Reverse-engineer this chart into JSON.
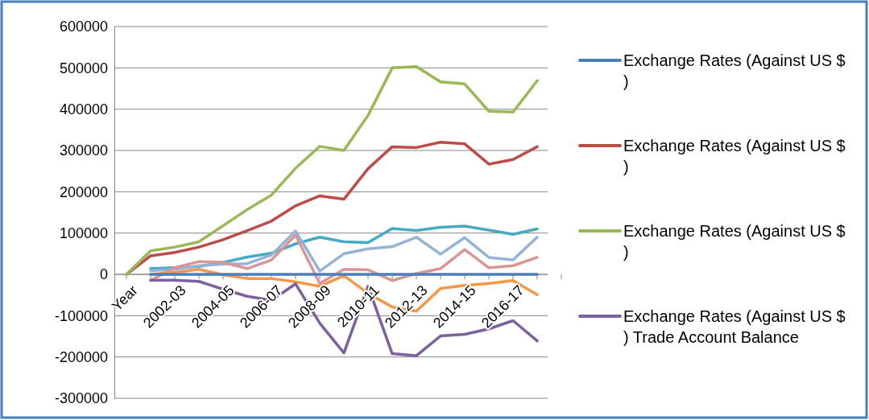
{
  "chart_data": {
    "type": "line",
    "categories": [
      "Year",
      null,
      "2002-03",
      null,
      "2004-05",
      null,
      "2006-07",
      null,
      "2008-09",
      null,
      "2010-11",
      null,
      "2012-13",
      null,
      "2014-15",
      null,
      "2016-17",
      null
    ],
    "ylim": [
      -300000,
      600000
    ],
    "yticks": [
      -300000,
      -200000,
      -100000,
      0,
      100000,
      200000,
      300000,
      400000,
      500000,
      600000
    ],
    "grid": "y",
    "legend": "right",
    "line_style": "solid",
    "marker": "none",
    "series": [
      {
        "color": "#46aac5",
        "values": [
          null,
          14000,
          16000,
          19000,
          29000,
          42000,
          51000,
          74000,
          90000,
          79000,
          77000,
          111000,
          106000,
          114000,
          117000,
          107000,
          97000,
          110000
        ]
      },
      {
        "color": "#95b3d7",
        "values": [
          null,
          9000,
          12000,
          21000,
          25000,
          26000,
          47000,
          105000,
          8000,
          50000,
          62000,
          67000,
          90000,
          49000,
          89000,
          41000,
          35000,
          90000
        ]
      },
      {
        "color": "#d99694",
        "values": [
          null,
          -15000,
          16000,
          31000,
          29000,
          14000,
          35000,
          95000,
          -22000,
          12000,
          11000,
          -15000,
          2000,
          14000,
          60000,
          16000,
          21000,
          41000
        ]
      },
      {
        "color": "#f79646",
        "values": [
          null,
          0,
          5000,
          12000,
          -1000,
          -10000,
          -10000,
          -18000,
          -29000,
          -3000,
          -46000,
          -79000,
          -89000,
          -34000,
          -27000,
          -22000,
          -15000,
          -49000
        ]
      },
      {
        "name": "Exchange Rates (Against US $ )",
        "color": "#4a7ebb",
        "values": [
          null,
          0,
          0,
          0,
          0,
          0,
          0,
          0,
          0,
          0,
          0,
          0,
          0,
          0,
          0,
          0,
          0,
          0
        ]
      },
      {
        "name": "Exchange Rates (Against US $ )",
        "color": "#be4b48",
        "values": [
          0,
          45000,
          53000,
          66000,
          84000,
          106000,
          129000,
          166000,
          190000,
          182000,
          256000,
          309000,
          307000,
          320000,
          316000,
          267000,
          278000,
          309000
        ]
      },
      {
        "name": "Exchange Rates (Against US $ )",
        "color": "#98b954",
        "values": [
          0,
          57000,
          66000,
          79000,
          118000,
          157000,
          192000,
          257000,
          310000,
          300000,
          385000,
          500000,
          503000,
          466000,
          461000,
          395000,
          393000,
          469000
        ]
      },
      {
        "name": "Exchange Rates (Against US $ ) Trade Account Balance",
        "color": "#7d60a0",
        "values": [
          null,
          -14000,
          -14000,
          -17000,
          -36000,
          -53000,
          -63000,
          -23000,
          -118000,
          -190000,
          -29000,
          -192000,
          -197000,
          -149000,
          -145000,
          -132000,
          -112000,
          -161000
        ]
      }
    ]
  }
}
